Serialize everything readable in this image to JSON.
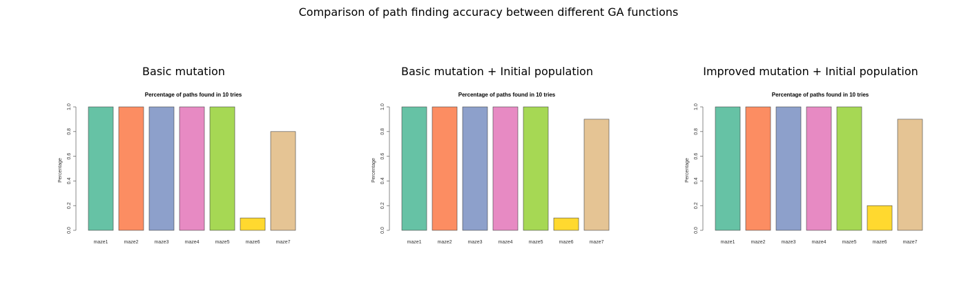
{
  "figure": {
    "title": "Comparison of path finding accuracy between different GA functions"
  },
  "colors": [
    "#66c2a5",
    "#fc8d62",
    "#8da0cb",
    "#e78ac3",
    "#a6d854",
    "#ffd92f",
    "#e5c494"
  ],
  "chart_data": [
    {
      "type": "bar",
      "panel_title": "Basic mutation",
      "title": "Percentage of paths found in 10 tries",
      "xlabel": "",
      "ylabel": "Percentage",
      "categories": [
        "maze1",
        "maze2",
        "maze3",
        "maze4",
        "maze5",
        "maze6",
        "maze7"
      ],
      "values": [
        1.0,
        1.0,
        1.0,
        1.0,
        1.0,
        0.1,
        0.8
      ],
      "ylim": [
        0,
        1
      ],
      "yticks": [
        "0.0",
        "0.2",
        "0.4",
        "0.6",
        "0.8",
        "1.0"
      ],
      "grid": false,
      "legend": "none"
    },
    {
      "type": "bar",
      "panel_title": "Basic mutation + Initial population",
      "title": "Percentage of paths found in 10 tries",
      "xlabel": "",
      "ylabel": "Percentage",
      "categories": [
        "maze1",
        "maze2",
        "maze3",
        "maze4",
        "maze5",
        "maze6",
        "maze7"
      ],
      "values": [
        1.0,
        1.0,
        1.0,
        1.0,
        1.0,
        0.1,
        0.9
      ],
      "ylim": [
        0,
        1
      ],
      "yticks": [
        "0.0",
        "0.2",
        "0.4",
        "0.6",
        "0.8",
        "1.0"
      ],
      "grid": false,
      "legend": "none"
    },
    {
      "type": "bar",
      "panel_title": "Improved mutation + Initial population",
      "title": "Percentage of paths found in 10 tries",
      "xlabel": "",
      "ylabel": "Percentage",
      "categories": [
        "maze1",
        "maze2",
        "maze3",
        "maze4",
        "maze5",
        "maze6",
        "maze7"
      ],
      "values": [
        1.0,
        1.0,
        1.0,
        1.0,
        1.0,
        0.2,
        0.9
      ],
      "ylim": [
        0,
        1
      ],
      "yticks": [
        "0.0",
        "0.2",
        "0.4",
        "0.6",
        "0.8",
        "1.0"
      ],
      "grid": false,
      "legend": "none"
    }
  ]
}
